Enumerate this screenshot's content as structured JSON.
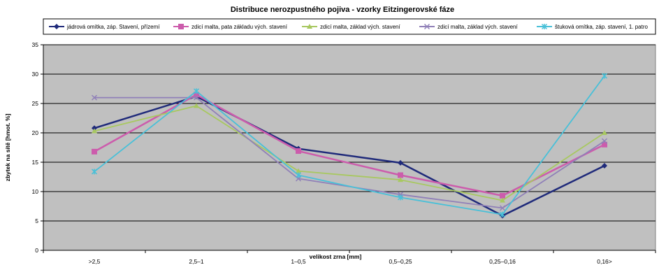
{
  "chart_data": {
    "type": "line",
    "title": "Distribuce nerozpustného pojiva - vzorky Eitzingerovské fáze",
    "xlabel": "velikost zrna [mm]",
    "ylabel": "zbytek na sítě [hmot. %]",
    "categories": [
      ">2,5",
      "2,5–1",
      "1–0,5",
      "0,5–0,25",
      "0,25–0,16",
      "0,16>"
    ],
    "ylim": [
      0,
      35
    ],
    "yticks": [
      0,
      5,
      10,
      15,
      20,
      25,
      30,
      35
    ],
    "grid": true,
    "legend_position": "top",
    "plot_background": "#c0c0c0",
    "series": [
      {
        "name": "jádrová omítka, záp. Stavení, přízemí",
        "color": "#1f2a7a",
        "marker": "diamond",
        "values": [
          20.8,
          26.2,
          17.3,
          14.9,
          5.9,
          14.4
        ]
      },
      {
        "name": "zdicí malta, pata základu vých. stavení",
        "color": "#cc5cac",
        "marker": "square",
        "values": [
          16.8,
          26.5,
          16.9,
          12.8,
          9.3,
          18.0
        ]
      },
      {
        "name": "zdicí malta, základ vých. stavení",
        "color": "#a8c860",
        "marker": "triangle",
        "values": [
          20.3,
          24.6,
          13.5,
          12.0,
          8.5,
          20.0
        ]
      },
      {
        "name": "zdicí malta, základ vých. stavení",
        "color": "#9080b8",
        "marker": "x",
        "values": [
          26.0,
          26.0,
          12.2,
          9.5,
          7.2,
          18.6
        ]
      },
      {
        "name": "štuková omítka, záp. stavení, 1. patro",
        "color": "#48c0d8",
        "marker": "star",
        "values": [
          13.4,
          27.1,
          12.8,
          9.0,
          6.1,
          29.7
        ]
      }
    ]
  }
}
